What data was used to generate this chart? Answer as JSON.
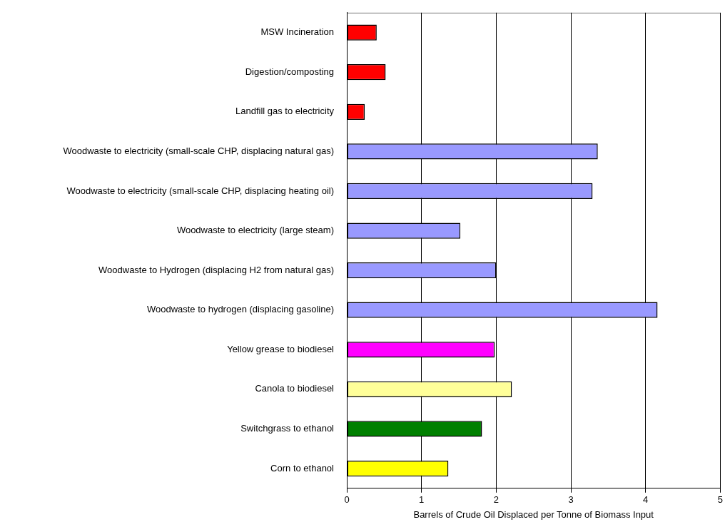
{
  "chart_data": {
    "type": "bar",
    "orientation": "horizontal",
    "categories": [
      "MSW Incineration",
      "Digestion/composting",
      "Landfill gas to electricity",
      "Woodwaste to electricity (small-scale CHP, displacing natural gas)",
      "Woodwaste to electricity (small-scale CHP, displacing heating oil)",
      "Woodwaste to electricity (large steam)",
      "Woodwaste to Hydrogen (displacing H2 from natural gas)",
      "Woodwaste to hydrogen (displacing gasoline)",
      "Yellow grease to biodiesel",
      "Canola to biodiesel",
      "Switchgrass to ethanol",
      "Corn to ethanol"
    ],
    "values": [
      0.4,
      0.52,
      0.24,
      3.36,
      3.29,
      1.52,
      2.0,
      4.16,
      1.98,
      2.21,
      1.81,
      1.36
    ],
    "colors": [
      "#ff0000",
      "#ff0000",
      "#ff0000",
      "#9999ff",
      "#9999ff",
      "#9999ff",
      "#9999ff",
      "#9999ff",
      "#ff00ff",
      "#ffff99",
      "#008000",
      "#ffff00"
    ],
    "xlabel": "Barrels of Crude Oil Displaced per Tonne of Biomass Input",
    "xlim": [
      0,
      5
    ],
    "xticks": [
      0,
      1,
      2,
      3,
      4,
      5
    ],
    "grid": "x",
    "legend": false
  }
}
